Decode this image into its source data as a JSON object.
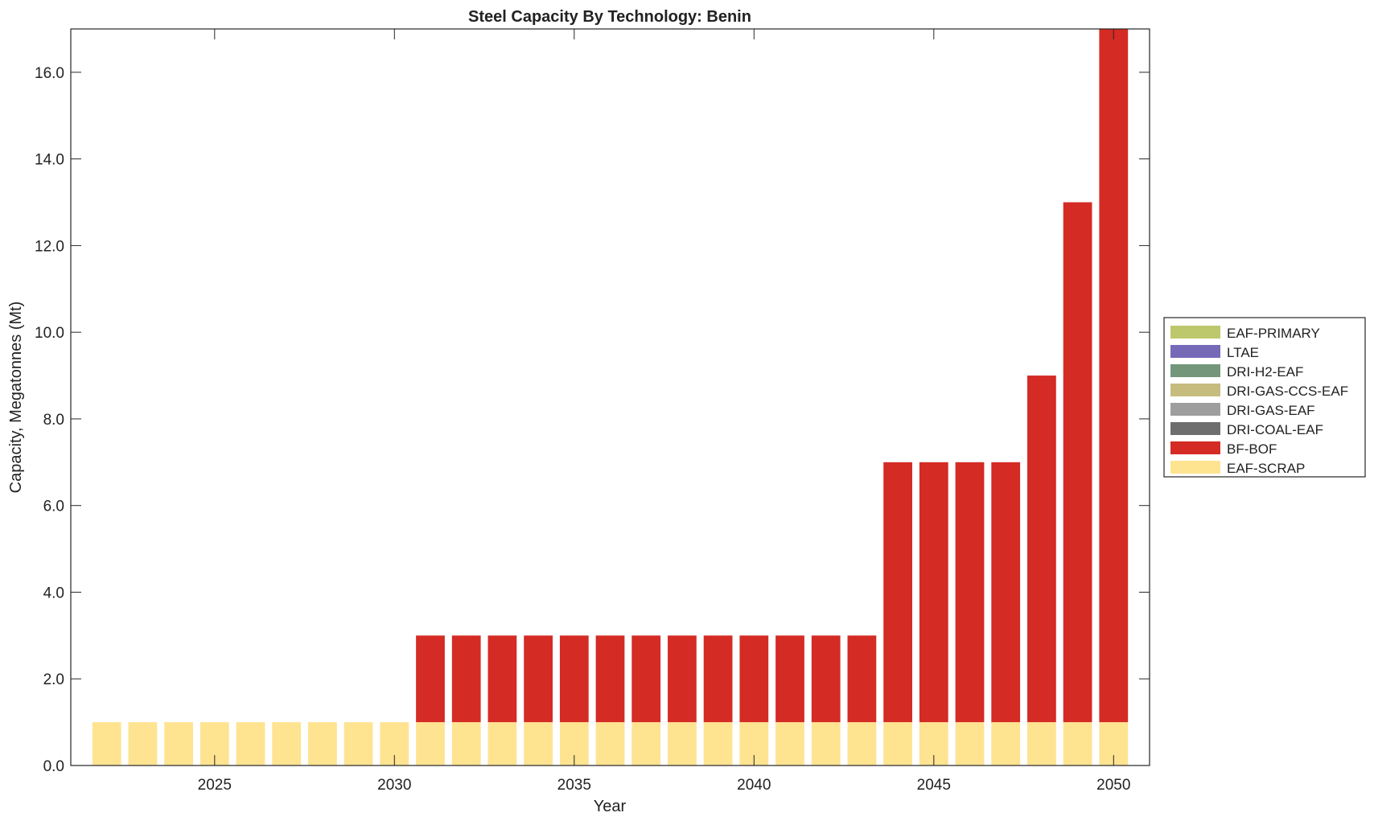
{
  "chart_data": {
    "type": "bar",
    "stacked": true,
    "title": "Steel Capacity By Technology: Benin",
    "xlabel": "Year",
    "ylabel": "Capacity, Megatonnes (Mt)",
    "xlim": [
      2021,
      2051
    ],
    "ylim": [
      0,
      17
    ],
    "xticks": [
      2025,
      2030,
      2035,
      2040,
      2045,
      2050
    ],
    "yticks": [
      0,
      2,
      4,
      6,
      8,
      10,
      12,
      14,
      16
    ],
    "ytick_labels": [
      "0.0",
      "2.0",
      "4.0",
      "6.0",
      "8.0",
      "10.0",
      "12.0",
      "14.0",
      "16.0"
    ],
    "grid": false,
    "legend_position": "outside-right",
    "x": [
      2022,
      2023,
      2024,
      2025,
      2026,
      2027,
      2028,
      2029,
      2030,
      2031,
      2032,
      2033,
      2034,
      2035,
      2036,
      2037,
      2038,
      2039,
      2040,
      2041,
      2042,
      2043,
      2044,
      2045,
      2046,
      2047,
      2048,
      2049,
      2050
    ],
    "series": [
      {
        "name": "EAF-SCRAP",
        "color": "#FEE391",
        "values": [
          1,
          1,
          1,
          1,
          1,
          1,
          1,
          1,
          1,
          1,
          1,
          1,
          1,
          1,
          1,
          1,
          1,
          1,
          1,
          1,
          1,
          1,
          1,
          1,
          1,
          1,
          1,
          1,
          1
        ]
      },
      {
        "name": "BF-BOF",
        "color": "#D42B24",
        "values": [
          0,
          0,
          0,
          0,
          0,
          0,
          0,
          0,
          0,
          2,
          2,
          2,
          2,
          2,
          2,
          2,
          2,
          2,
          2,
          2,
          2,
          2,
          6,
          6,
          6,
          6,
          8,
          12,
          16
        ]
      },
      {
        "name": "DRI-COAL-EAF",
        "color": "#6E6E6E",
        "values": [
          0,
          0,
          0,
          0,
          0,
          0,
          0,
          0,
          0,
          0,
          0,
          0,
          0,
          0,
          0,
          0,
          0,
          0,
          0,
          0,
          0,
          0,
          0,
          0,
          0,
          0,
          0,
          0,
          0
        ]
      },
      {
        "name": "DRI-GAS-EAF",
        "color": "#9E9E9E",
        "values": [
          0,
          0,
          0,
          0,
          0,
          0,
          0,
          0,
          0,
          0,
          0,
          0,
          0,
          0,
          0,
          0,
          0,
          0,
          0,
          0,
          0,
          0,
          0,
          0,
          0,
          0,
          0,
          0,
          0
        ]
      },
      {
        "name": "DRI-GAS-CCS-EAF",
        "color": "#C6BC7E",
        "values": [
          0,
          0,
          0,
          0,
          0,
          0,
          0,
          0,
          0,
          0,
          0,
          0,
          0,
          0,
          0,
          0,
          0,
          0,
          0,
          0,
          0,
          0,
          0,
          0,
          0,
          0,
          0,
          0,
          0
        ]
      },
      {
        "name": "DRI-H2-EAF",
        "color": "#74967A",
        "values": [
          0,
          0,
          0,
          0,
          0,
          0,
          0,
          0,
          0,
          0,
          0,
          0,
          0,
          0,
          0,
          0,
          0,
          0,
          0,
          0,
          0,
          0,
          0,
          0,
          0,
          0,
          0,
          0,
          0
        ]
      },
      {
        "name": "LTAE",
        "color": "#7569B8",
        "values": [
          0,
          0,
          0,
          0,
          0,
          0,
          0,
          0,
          0,
          0,
          0,
          0,
          0,
          0,
          0,
          0,
          0,
          0,
          0,
          0,
          0,
          0,
          0,
          0,
          0,
          0,
          0,
          0,
          0
        ]
      },
      {
        "name": "EAF-PRIMARY",
        "color": "#BDC76C",
        "values": [
          0,
          0,
          0,
          0,
          0,
          0,
          0,
          0,
          0,
          0,
          0,
          0,
          0,
          0,
          0,
          0,
          0,
          0,
          0,
          0,
          0,
          0,
          0,
          0,
          0,
          0,
          0,
          0,
          0
        ]
      }
    ],
    "legend_order": [
      "EAF-PRIMARY",
      "LTAE",
      "DRI-H2-EAF",
      "DRI-GAS-CCS-EAF",
      "DRI-GAS-EAF",
      "DRI-COAL-EAF",
      "BF-BOF",
      "EAF-SCRAP"
    ]
  }
}
